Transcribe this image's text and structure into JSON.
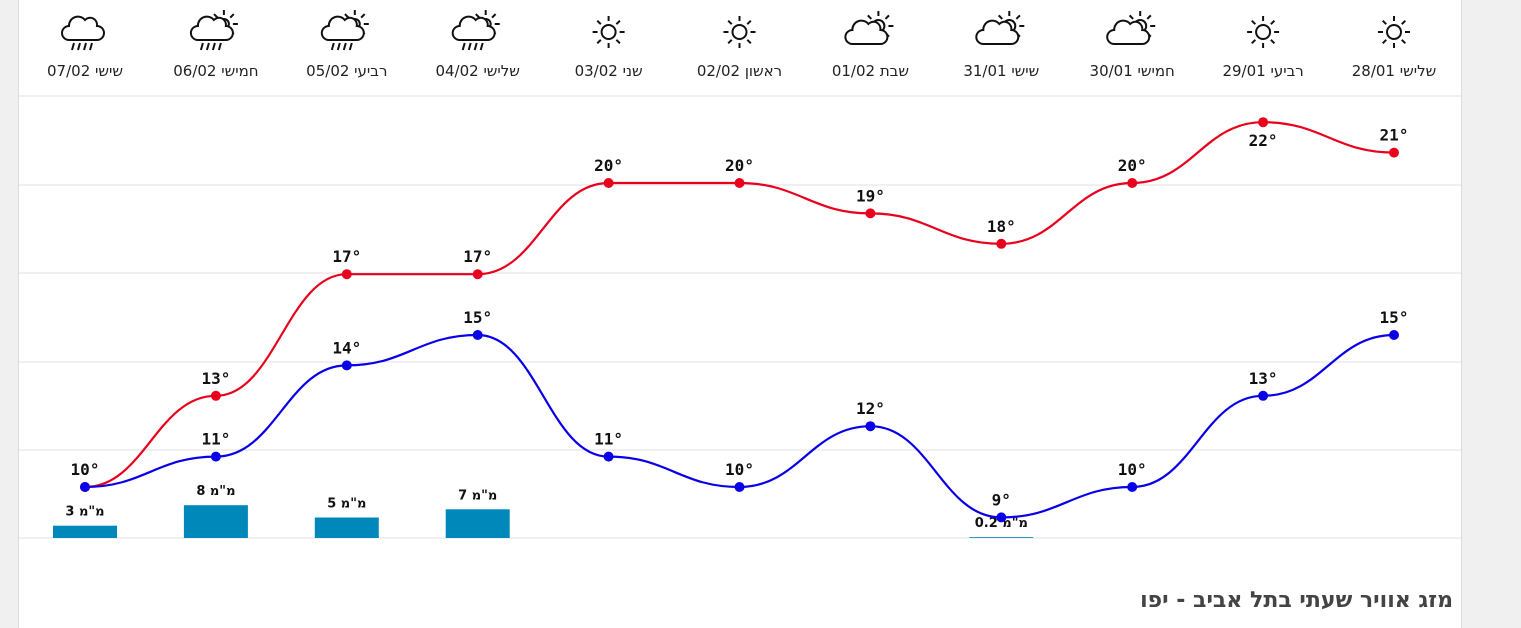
{
  "footer": {
    "title": "מזג אוויר שעתי בתל אביב - יפו"
  },
  "colors": {
    "max_line": "#e8001c",
    "min_line": "#0a00e8",
    "bar": "#0088bb",
    "grid": "#e0e0e0"
  },
  "chart_data": {
    "type": "line",
    "categories": [
      "שישי 07/02",
      "חמישי 06/02",
      "רביעי 05/02",
      "שלישי 04/02",
      "שני 03/02",
      "ראשון 02/02",
      "שבת 01/02",
      "שישי 31/01",
      "חמישי 30/01",
      "רביעי 29/01",
      "שלישי 28/01"
    ],
    "icons": [
      "rain-cloud-icon",
      "sun-cloud-rain-icon",
      "sun-cloud-rain-icon",
      "sun-cloud-rain-icon",
      "sun-icon",
      "sun-icon",
      "partly-cloudy-icon",
      "partly-cloudy-icon",
      "partly-cloudy-icon",
      "sun-icon",
      "sun-icon"
    ],
    "series": [
      {
        "values": [
          10,
          13,
          17,
          17,
          20,
          20,
          19,
          18,
          20,
          22,
          21
        ]
      },
      {
        "values": [
          10,
          11,
          14,
          15,
          11,
          10,
          12,
          9,
          10,
          13,
          15
        ]
      }
    ],
    "precipitation": [
      3,
      8,
      5,
      7,
      null,
      null,
      null,
      0.2,
      null,
      null,
      null
    ],
    "temp_labels_max": [
      "10°",
      "13°",
      "17°",
      "17°",
      "20°",
      "20°",
      "19°",
      "18°",
      "20°",
      "22°",
      "21°"
    ],
    "temp_labels_min": [
      "",
      "11°",
      "14°",
      "15°",
      "11°",
      "10°",
      "12°",
      "9°",
      "10°",
      "13°",
      "15°"
    ],
    "precip_labels": [
      "3 מ\"מ",
      "8 מ\"מ",
      "5 מ\"מ",
      "7 מ\"מ",
      "",
      "",
      "",
      "0.2 מ\"מ",
      "",
      "",
      ""
    ]
  }
}
